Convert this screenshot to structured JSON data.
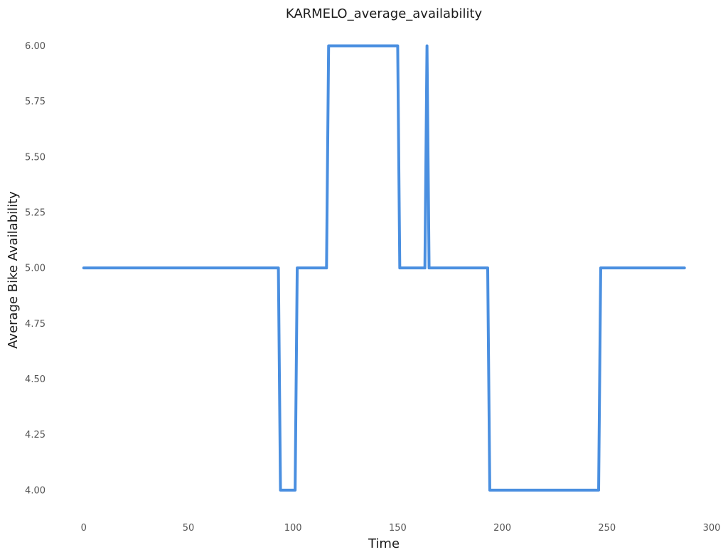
{
  "chart_data": {
    "type": "line",
    "title": "KARMELO_average_availability",
    "xlabel": "Time",
    "ylabel": "Average Bike Availability",
    "xlim": [
      -4,
      300
    ],
    "ylim": [
      3.91,
      6.04
    ],
    "xticks": [
      0,
      50,
      100,
      150,
      200,
      250,
      300
    ],
    "yticks": [
      4.0,
      4.25,
      4.5,
      4.75,
      5.0,
      5.25,
      5.5,
      5.75,
      6.0
    ],
    "ytick_decimals": 2,
    "grid": false,
    "legend": "none",
    "series": [
      {
        "color": "#4a8fe0",
        "x": [
          0,
          93,
          94,
          95,
          101,
          102,
          116,
          117,
          150,
          151,
          163,
          164,
          165,
          193,
          194,
          246,
          247,
          287
        ],
        "y": [
          5,
          5,
          4,
          4,
          4,
          5,
          5,
          6,
          6,
          5,
          5,
          6,
          5,
          5,
          4,
          4,
          5,
          5
        ]
      }
    ]
  }
}
